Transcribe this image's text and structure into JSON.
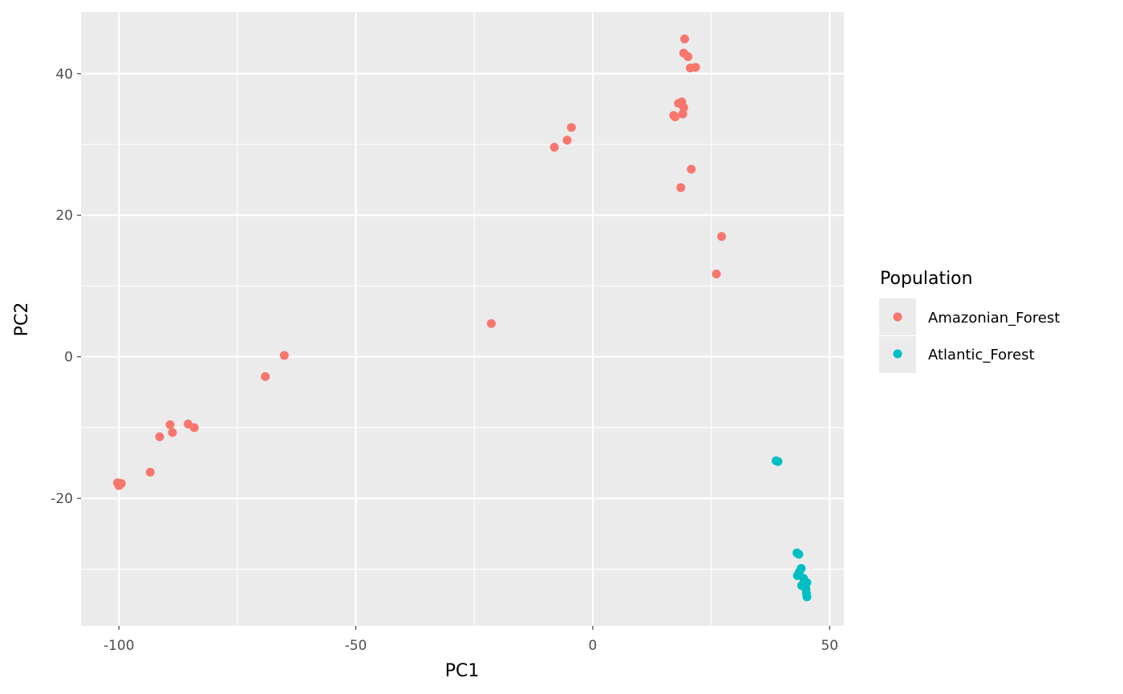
{
  "chart_data": {
    "type": "scatter",
    "title": "",
    "xlabel": "PC1",
    "ylabel": "PC2",
    "xlim": [
      -108,
      53
    ],
    "ylim": [
      -38,
      48.7
    ],
    "x_ticks": [
      -100,
      -50,
      0,
      50
    ],
    "x_tick_labels": [
      "-100",
      "-50",
      "0",
      "50"
    ],
    "y_ticks": [
      -20,
      0,
      20,
      40
    ],
    "y_tick_labels": [
      "-20",
      "0",
      "20",
      "40"
    ],
    "grid": true,
    "panel_background": "#ebebeb",
    "legend": {
      "title": "Population",
      "position": "right",
      "entries": [
        "Amazonian_Forest",
        "Atlantic_Forest"
      ]
    },
    "series": [
      {
        "name": "Amazonian_Forest",
        "color": "#f8766d",
        "points": [
          [
            -100.3,
            -17.8
          ],
          [
            -99.8,
            -18.0
          ],
          [
            -100.0,
            -18.2
          ],
          [
            -99.5,
            -17.9
          ],
          [
            -93.4,
            -16.3
          ],
          [
            -91.4,
            -11.3
          ],
          [
            -88.7,
            -10.7
          ],
          [
            -89.2,
            -9.6
          ],
          [
            -85.4,
            -9.5
          ],
          [
            -84.1,
            -10.0
          ],
          [
            -69.1,
            -2.8
          ],
          [
            -65.1,
            0.2
          ],
          [
            -21.4,
            4.7
          ],
          [
            -8.1,
            29.6
          ],
          [
            -5.4,
            30.6
          ],
          [
            -4.5,
            32.4
          ],
          [
            17.1,
            34.1
          ],
          [
            17.4,
            33.9
          ],
          [
            18.1,
            35.8
          ],
          [
            18.8,
            36.0
          ],
          [
            19.2,
            35.2
          ],
          [
            19.0,
            34.3
          ],
          [
            18.6,
            23.9
          ],
          [
            20.8,
            26.5
          ],
          [
            19.4,
            44.9
          ],
          [
            19.2,
            42.9
          ],
          [
            20.1,
            42.4
          ],
          [
            20.6,
            40.8
          ],
          [
            21.7,
            40.9
          ],
          [
            26.1,
            11.7
          ],
          [
            27.2,
            17.0
          ]
        ]
      },
      {
        "name": "Atlantic_Forest",
        "color": "#00bfc4",
        "points": [
          [
            38.7,
            -14.7
          ],
          [
            39.1,
            -14.8
          ],
          [
            43.1,
            -27.7
          ],
          [
            43.5,
            -27.9
          ],
          [
            44.0,
            -29.9
          ],
          [
            43.6,
            -30.4
          ],
          [
            43.2,
            -30.9
          ],
          [
            44.5,
            -31.3
          ],
          [
            45.2,
            -31.9
          ],
          [
            44.1,
            -32.3
          ],
          [
            45.0,
            -32.8
          ],
          [
            45.1,
            -33.4
          ],
          [
            45.2,
            -33.9
          ]
        ]
      }
    ]
  }
}
